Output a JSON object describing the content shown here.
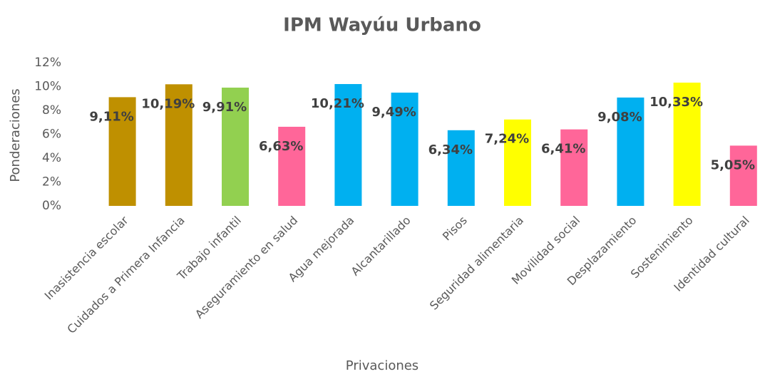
{
  "chart_data": {
    "type": "bar",
    "title": "IPM Wayúu Urbano",
    "x_label": "Privaciones",
    "y_label": "Ponderaciones",
    "categories": [
      "Inasistencia escolar",
      "Cuidados a Primera Infancia",
      "Trabajo infantil",
      "Aseguramiento en salud",
      "Agua mejorada",
      "Alcantarillado",
      "Pisos",
      "Seguridad alimentaria",
      "Movilidad social",
      "Desplazamiento",
      "Sostenimiento",
      "Identidad cultural"
    ],
    "values": [
      9.11,
      10.19,
      9.91,
      6.63,
      10.21,
      9.49,
      6.34,
      7.24,
      6.41,
      9.08,
      10.33,
      5.05
    ],
    "value_labels": [
      "9,11%",
      "10,19%",
      "9,91%",
      "6,63%",
      "10,21%",
      "9,49%",
      "6,34%",
      "7,24%",
      "6,41%",
      "9,08%",
      "10,33%",
      "5,05%"
    ],
    "colors": [
      "#bf9000",
      "#bf9000",
      "#92d050",
      "#ff6699",
      "#00b0f0",
      "#00b0f0",
      "#00b0f0",
      "#ffff00",
      "#ff6699",
      "#00b0f0",
      "#ffff00",
      "#ff6699"
    ],
    "ylim": [
      0,
      12
    ],
    "yticks": [
      {
        "value": 0,
        "label": "0%"
      },
      {
        "value": 2,
        "label": "2%"
      },
      {
        "value": 4,
        "label": "4%"
      },
      {
        "value": 6,
        "label": "6%"
      },
      {
        "value": 8,
        "label": "8%"
      },
      {
        "value": 10,
        "label": "10%"
      },
      {
        "value": 12,
        "label": "12%"
      }
    ],
    "grid": false
  }
}
